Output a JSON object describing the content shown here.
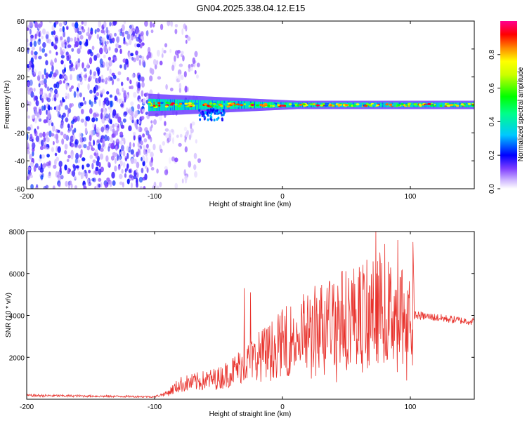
{
  "title": "GN04.2025.338.04.12.E15",
  "chart_data": [
    {
      "type": "heatmap",
      "name": "spectrogram",
      "xlabel": "Height of straight line (km)",
      "ylabel": "Frequency (Hz)",
      "xlim": [
        -200,
        150
      ],
      "ylim": [
        -60,
        60
      ],
      "xticks": [
        -200,
        -100,
        0,
        100
      ],
      "xtick_labels": [
        "-200",
        "-100",
        "0",
        "100"
      ],
      "yticks": [
        -60,
        -40,
        -20,
        0,
        20,
        40,
        60
      ],
      "ytick_labels": [
        "-60",
        "-40",
        "-20",
        "0",
        "20",
        "40",
        "60"
      ],
      "colorbar": {
        "label": "Normalized spectral amplitude",
        "range": [
          0,
          1
        ],
        "ticks": [
          0.0,
          0.2,
          0.4,
          0.6,
          0.8
        ],
        "tick_labels": [
          "0.0",
          "0.2",
          "0.4",
          "0.6",
          "0.8"
        ],
        "colormap": [
          "#ffffff",
          "#cfb8ff",
          "#7f3fff",
          "#0000ff",
          "#00c8ff",
          "#00ff88",
          "#00ff00",
          "#ccff00",
          "#ffff00",
          "#ff8800",
          "#ff0000",
          "#ff0090"
        ]
      },
      "regions": [
        {
          "desc": "broadband noise",
          "x_range": [
            -200,
            -90
          ],
          "freq_range": [
            -60,
            60
          ],
          "amplitude": [
            0.05,
            0.3
          ]
        },
        {
          "desc": "signal band",
          "x_range": [
            -105,
            150
          ],
          "center_freq": 0,
          "half_width_hz": [
            8,
            3
          ],
          "amplitude": [
            0.3,
            0.95
          ]
        }
      ]
    },
    {
      "type": "line",
      "name": "snr",
      "xlabel": "Height of straight line (km)",
      "ylabel": "SNR (10 * v/v)",
      "xlim": [
        -200,
        150
      ],
      "ylim": [
        0,
        8000
      ],
      "xticks": [
        -200,
        -100,
        0,
        100
      ],
      "xtick_labels": [
        "-200",
        "-100",
        "0",
        "100"
      ],
      "yticks": [
        2000,
        4000,
        6000,
        8000
      ],
      "ytick_labels": [
        "2000",
        "4000",
        "6000",
        "8000"
      ],
      "color": "#e8322c",
      "trend": {
        "x": [
          -200,
          -150,
          -100,
          -90,
          -80,
          -70,
          -60,
          -50,
          -40,
          -30,
          -20,
          -10,
          0,
          10,
          20,
          30,
          40,
          50,
          60,
          70,
          80,
          90,
          100,
          105,
          120,
          140,
          150
        ],
        "y": [
          180,
          150,
          120,
          300,
          700,
          800,
          900,
          1000,
          1300,
          1700,
          2000,
          2300,
          2700,
          3000,
          3300,
          3600,
          3800,
          4000,
          4100,
          4200,
          4200,
          4200,
          4100,
          4000,
          3900,
          3750,
          3700
        ]
      },
      "spikes": [
        {
          "x": -30,
          "y": 5300
        },
        {
          "x": -25,
          "y": 5100
        },
        {
          "x": 40,
          "y": 5500
        },
        {
          "x": 60,
          "y": 6300
        },
        {
          "x": 73,
          "y": 8000
        },
        {
          "x": 76,
          "y": 7000
        },
        {
          "x": 80,
          "y": 7400
        },
        {
          "x": 90,
          "y": 7600
        },
        {
          "x": 102,
          "y": 7500
        }
      ]
    }
  ]
}
